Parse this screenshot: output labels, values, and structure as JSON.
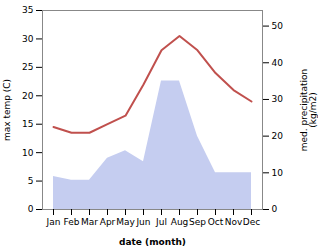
{
  "chart_data": {
    "type": "line",
    "categories": [
      "Jan",
      "Feb",
      "Mar",
      "Apr",
      "May",
      "Jun",
      "Jul",
      "Aug",
      "Sep",
      "Oct",
      "Nov",
      "Dec"
    ],
    "xlabel": "date (month)",
    "ylabel": "max temp (C)",
    "y2label": "med. precipitation\n(kg/m2)",
    "series": [
      {
        "type": "area",
        "axis": "y2",
        "color": "#c5cdf0",
        "values": [
          9,
          8,
          8,
          14,
          16,
          13,
          35,
          35,
          20,
          10,
          10,
          10
        ]
      },
      {
        "type": "line",
        "color": "#c0504d",
        "values": [
          14.5,
          13.5,
          13.5,
          15.0,
          16.5,
          22.0,
          28.0,
          30.5,
          28.0,
          24.0,
          21.0,
          19.0
        ]
      }
    ],
    "ylim": [
      0,
      35
    ],
    "yticks": [
      0,
      5,
      10,
      15,
      20,
      25,
      30,
      35
    ],
    "y2lim": [
      0,
      54.25
    ],
    "y2ticks": [
      0,
      10,
      20,
      30,
      40,
      50
    ],
    "grid": false
  }
}
